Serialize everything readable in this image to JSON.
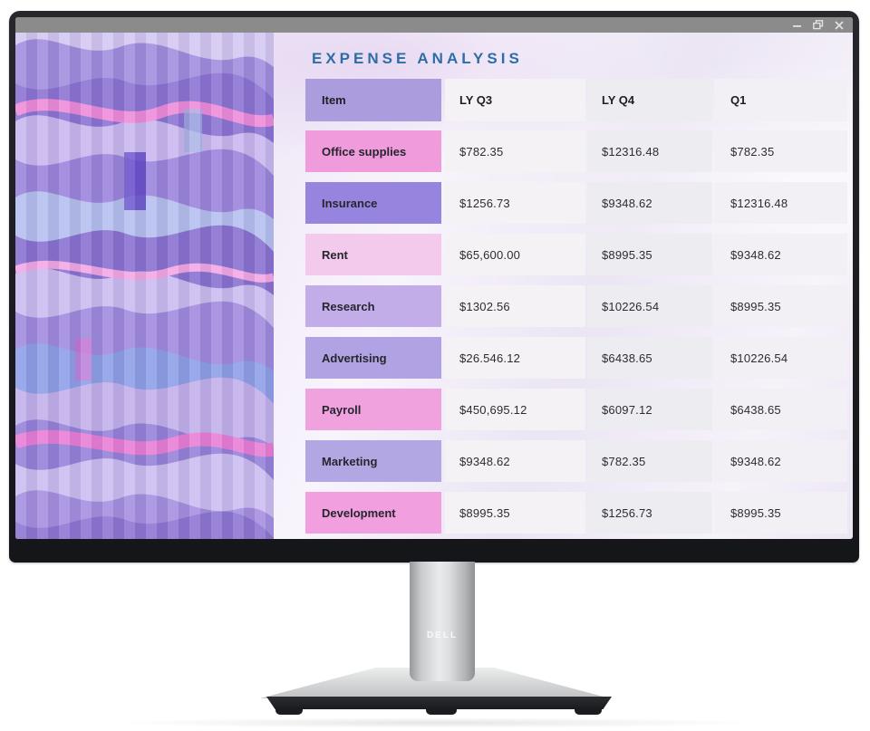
{
  "monitor": {
    "brand": "DELL"
  },
  "window": {
    "controls": [
      {
        "name": "minimize-icon"
      },
      {
        "name": "restore-icon"
      },
      {
        "name": "close-icon"
      }
    ]
  },
  "screen": {
    "title": "EXPENSE ANALYSIS",
    "table": {
      "columns": [
        "Item",
        "LY Q3",
        "LY Q4",
        "Q1"
      ],
      "rows": [
        {
          "label": "Office supplies",
          "label_bg": "#ef9bdc",
          "values": [
            "$782.35",
            "$12316.48",
            "$782.35"
          ]
        },
        {
          "label": "Insurance",
          "label_bg": "#9784de",
          "values": [
            "$1256.73",
            "$9348.62",
            "$12316.48"
          ]
        },
        {
          "label": "Rent",
          "label_bg": "#f3c9ec",
          "values": [
            "$65,600.00",
            "$8995.35",
            "$9348.62"
          ]
        },
        {
          "label": "Research",
          "label_bg": "#c3ade9",
          "values": [
            "$1302.56",
            "$10226.54",
            "$8995.35"
          ]
        },
        {
          "label": "Advertising",
          "label_bg": "#b1a2e3",
          "values": [
            "$26.546.12",
            "$6438.65",
            "$10226.54"
          ]
        },
        {
          "label": "Payroll",
          "label_bg": "#f0a2df",
          "values": [
            "$450,695.12",
            "$6097.12",
            "$6438.65"
          ]
        },
        {
          "label": "Marketing",
          "label_bg": "#b3a7e3",
          "values": [
            "$9348.62",
            "$782.35",
            "$9348.62"
          ]
        },
        {
          "label": "Development",
          "label_bg": "#f19fdf",
          "values": [
            "$8995.35",
            "$1256.73",
            "$8995.35"
          ]
        }
      ]
    }
  },
  "colors": {
    "title_text": "#2e6da6",
    "titlebar_bg": "#8b8b8b",
    "bezel": "#1c1e22",
    "header_label_bg": "#ab9ddd",
    "value_columns": [
      "#f4f2f5",
      "#edecf1",
      "#f2f0f4"
    ],
    "desktop_bg": "#f0ebf7"
  }
}
